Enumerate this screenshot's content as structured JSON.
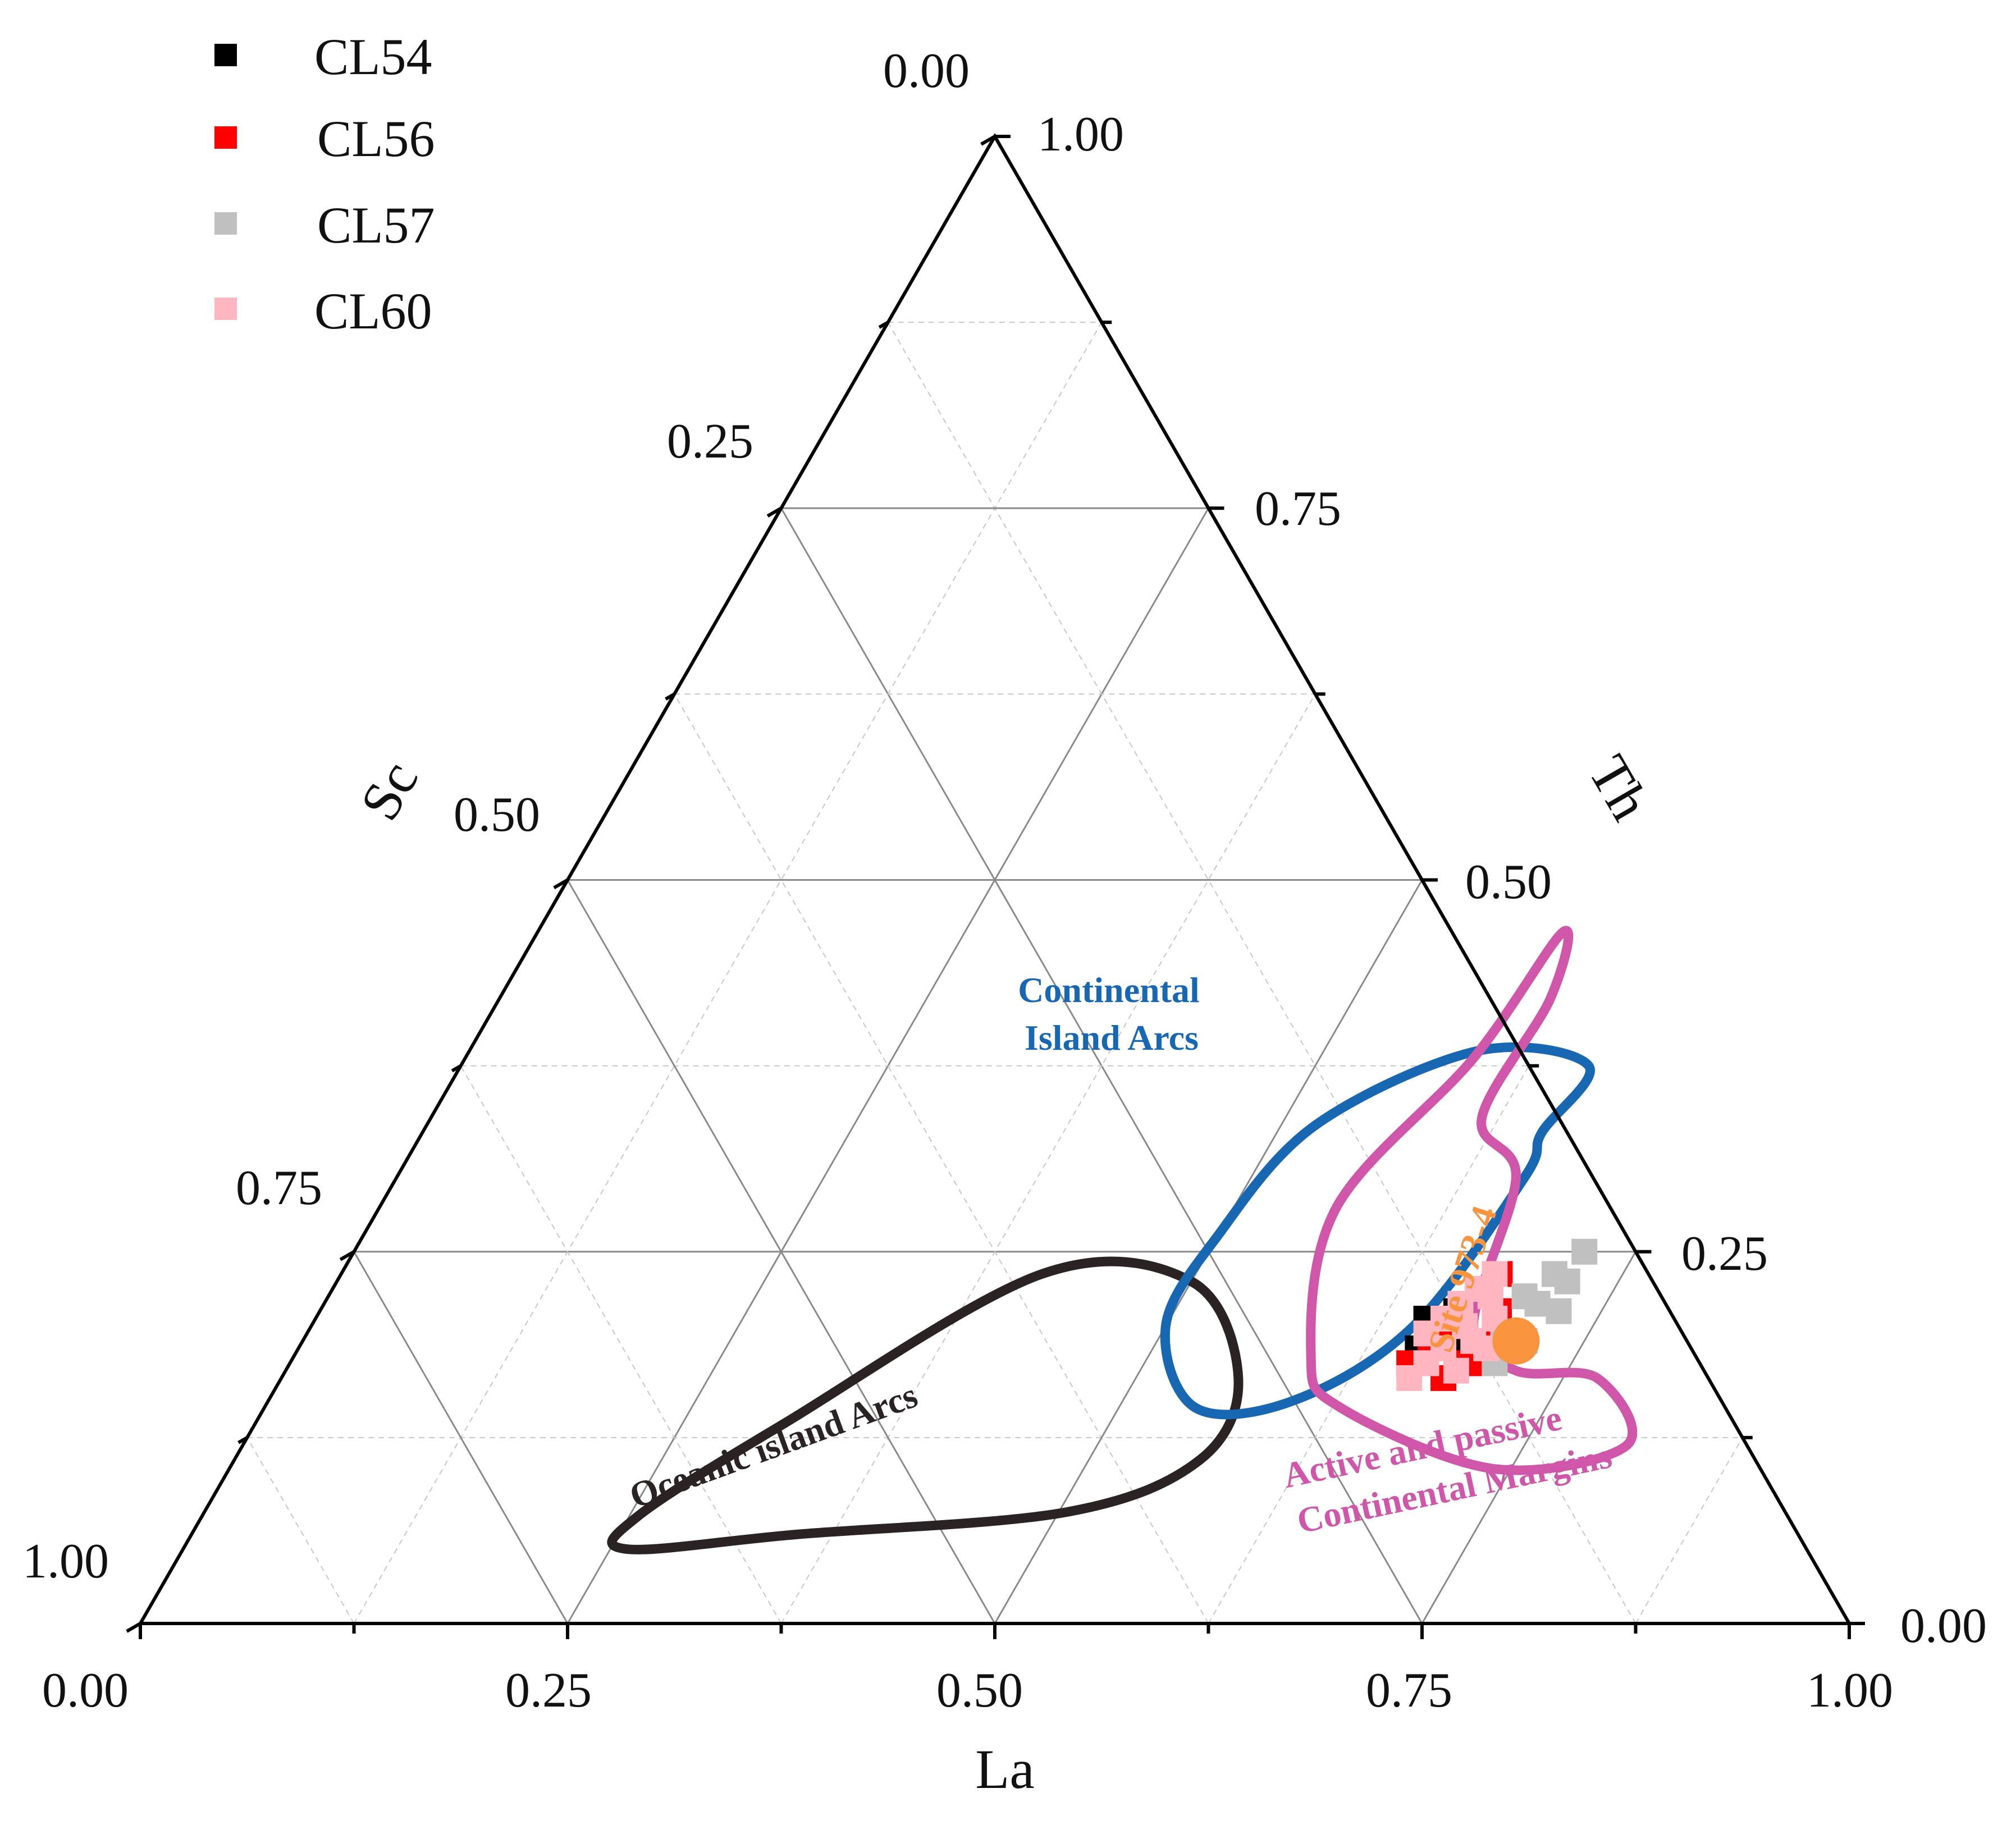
{
  "chart_data": {
    "type": "ternary-scatter",
    "axes": {
      "bottom": {
        "label": "La",
        "ticks": [
          "0.00",
          "0.25",
          "0.50",
          "0.75",
          "1.00"
        ]
      },
      "left": {
        "label": "Sc",
        "ticks": [
          "0.00",
          "0.25",
          "0.50",
          "0.75",
          "1.00"
        ]
      },
      "right": {
        "label": "Th",
        "ticks": [
          "1.00",
          "0.75",
          "0.50",
          "0.25",
          "0.00"
        ]
      }
    },
    "grid_step": 0.125,
    "legend_position": "top-left",
    "legend": [
      {
        "name": "CL54",
        "color": "#000000"
      },
      {
        "name": "CL56",
        "color": "#ff0000"
      },
      {
        "name": "CL57",
        "color": "#c0c0c0"
      },
      {
        "name": "CL60",
        "color": "#ffb6c1"
      }
    ],
    "fields": [
      {
        "name": "Oceanic island Arcs",
        "label": "Oceanic  island  Arcs",
        "color": "#2b2223"
      },
      {
        "name": "Continental Island Arcs",
        "label_lines": [
          "Continental",
          "Island Arcs"
        ],
        "color": "#1767b3"
      },
      {
        "name": "Active and passive Continental Margins",
        "label_lines": [
          "Active and passive",
          "Continental Margins"
        ],
        "color": "#cf56a8"
      }
    ],
    "reference_point": {
      "name": "Site 973-4",
      "label": "Site 973-4",
      "la": 0.71,
      "th": 0.19,
      "color": "#f7943d"
    },
    "series": [
      {
        "name": "CL54",
        "color": "#000000",
        "points": [
          {
            "la": 0.65,
            "th": 0.205
          },
          {
            "la": 0.655,
            "th": 0.185
          },
          {
            "la": 0.665,
            "th": 0.21
          },
          {
            "la": 0.68,
            "th": 0.185
          }
        ]
      },
      {
        "name": "CL56",
        "color": "#ff0000",
        "points": [
          {
            "la": 0.655,
            "th": 0.175
          },
          {
            "la": 0.66,
            "th": 0.19
          },
          {
            "la": 0.67,
            "th": 0.2
          },
          {
            "la": 0.675,
            "th": 0.225
          },
          {
            "la": 0.678,
            "th": 0.235
          },
          {
            "la": 0.68,
            "th": 0.165
          },
          {
            "la": 0.69,
            "th": 0.175
          },
          {
            "la": 0.695,
            "th": 0.2
          },
          {
            "la": 0.69,
            "th": 0.21
          }
        ]
      },
      {
        "name": "CL57",
        "color": "#c0c0c0",
        "points": [
          {
            "la": 0.7,
            "th": 0.195
          },
          {
            "la": 0.71,
            "th": 0.215
          },
          {
            "la": 0.72,
            "th": 0.23
          },
          {
            "la": 0.72,
            "th": 0.25
          },
          {
            "la": 0.705,
            "th": 0.175
          },
          {
            "la": 0.715,
            "th": 0.19
          },
          {
            "la": 0.725,
            "th": 0.21
          },
          {
            "la": 0.7,
            "th": 0.22
          },
          {
            "la": 0.71,
            "th": 0.235
          }
        ]
      },
      {
        "name": "CL60",
        "color": "#ffb6c1",
        "points": [
          {
            "la": 0.655,
            "th": 0.195
          },
          {
            "la": 0.665,
            "th": 0.215
          },
          {
            "la": 0.67,
            "th": 0.185
          },
          {
            "la": 0.675,
            "th": 0.2
          },
          {
            "la": 0.665,
            "th": 0.175
          },
          {
            "la": 0.68,
            "th": 0.22
          },
          {
            "la": 0.685,
            "th": 0.19
          },
          {
            "la": 0.69,
            "th": 0.205
          },
          {
            "la": 0.675,
            "th": 0.235
          },
          {
            "la": 0.66,
            "th": 0.165
          },
          {
            "la": 0.685,
            "th": 0.17
          },
          {
            "la": 0.695,
            "th": 0.185
          },
          {
            "la": 0.67,
            "th": 0.225
          },
          {
            "la": 0.66,
            "th": 0.205
          }
        ]
      }
    ]
  }
}
